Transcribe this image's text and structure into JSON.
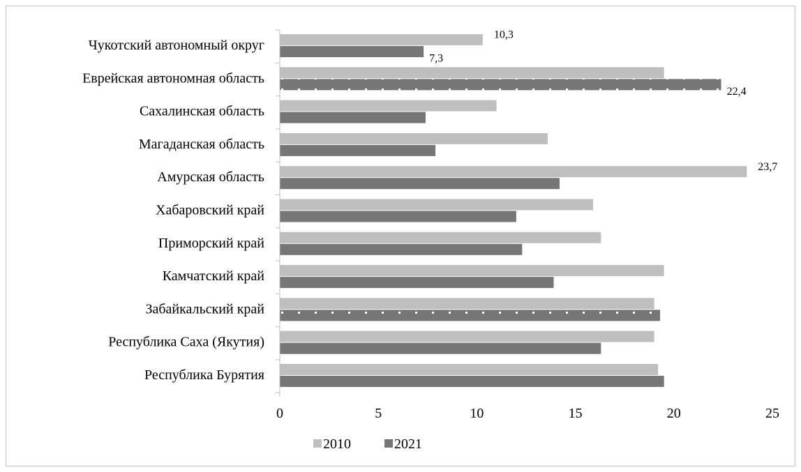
{
  "chart_data": {
    "type": "bar",
    "orientation": "horizontal",
    "categories": [
      "Чукотский автономный округ",
      "Еврейская автономная область",
      "Сахалинская область",
      "Магаданская область",
      "Амурская область",
      "Хабаровский край",
      "Приморский край",
      "Камчатский край",
      "Забайкальский край",
      "Республика Саха (Якутия)",
      "Республика Бурятия"
    ],
    "series": [
      {
        "name": "2010",
        "color": "#bfbfbf",
        "values": [
          10.3,
          19.5,
          11.0,
          13.6,
          23.7,
          15.9,
          16.3,
          19.5,
          19.0,
          19.0,
          19.2
        ],
        "data_labels": [
          "10,3",
          "",
          "",
          "",
          "23,7",
          "",
          "",
          "",
          "",
          "",
          ""
        ]
      },
      {
        "name": "2021",
        "color": "#767676",
        "values": [
          7.3,
          22.4,
          7.4,
          7.9,
          14.2,
          12.0,
          12.3,
          13.9,
          19.3,
          16.3,
          19.5
        ],
        "data_labels": [
          "7,3",
          "22,4",
          "",
          "",
          "",
          "",
          "",
          "",
          "",
          "",
          ""
        ],
        "dotted_pattern": [
          false,
          true,
          false,
          false,
          false,
          false,
          false,
          false,
          true,
          false,
          false
        ]
      }
    ],
    "xlim": [
      0,
      25
    ],
    "xticks": [
      0,
      5,
      10,
      15,
      20,
      25
    ],
    "xtick_labels": [
      "0",
      "5",
      "10",
      "15",
      "20",
      "25"
    ],
    "grid": false,
    "legend_position": "bottom-center",
    "title": "",
    "xlabel": "",
    "ylabel": ""
  }
}
